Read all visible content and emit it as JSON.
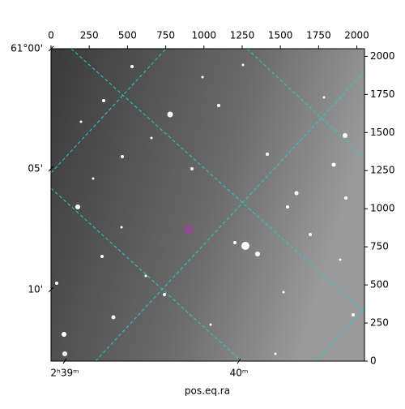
{
  "chart_data": {
    "type": "image",
    "xlabel": "pos.eq.ra",
    "xlim": [
      0,
      2050
    ],
    "xticks": [
      0,
      250,
      500,
      750,
      1000,
      1250,
      1500,
      1750,
      2000
    ],
    "ylim": [
      0,
      2050
    ],
    "yticks": [
      0,
      250,
      500,
      750,
      1000,
      1250,
      1500,
      1750,
      2000
    ],
    "dec_labels": [
      "61°00'",
      "05'",
      "10'"
    ],
    "ra_labels": [
      "2ʰ39ᵐ",
      "40ᵐ"
    ]
  }
}
